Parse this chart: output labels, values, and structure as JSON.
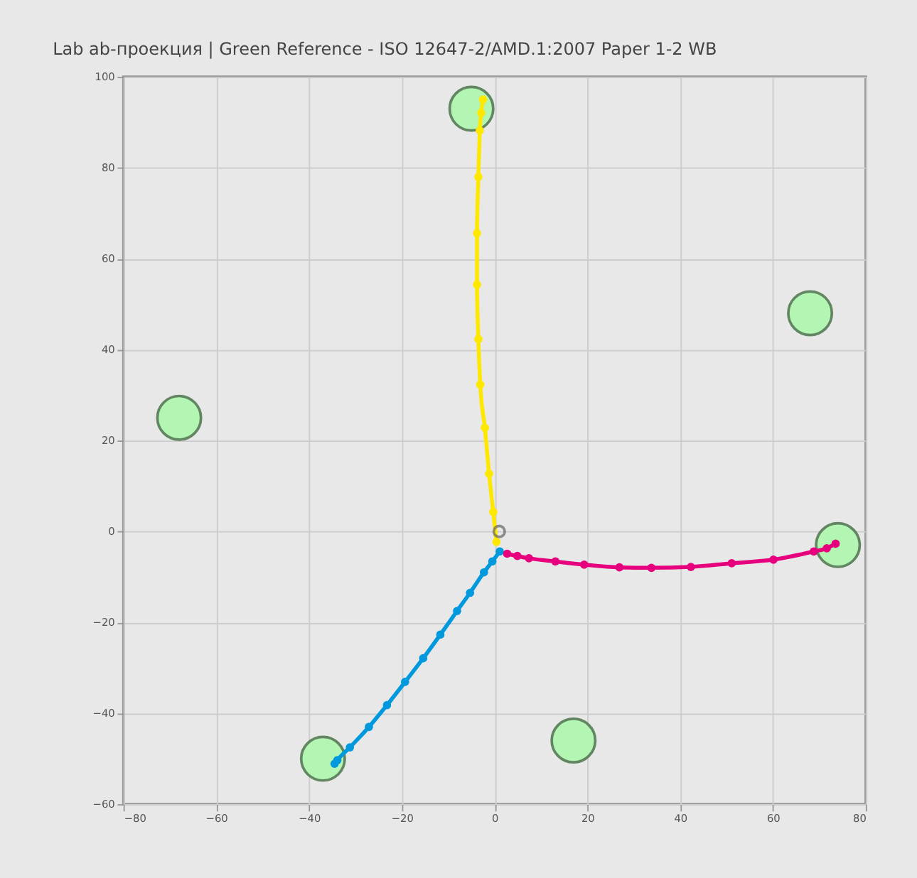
{
  "chart_data": {
    "type": "line",
    "title": "Lab ab-проекция | Green Reference - ISO 12647-2/AMD.1:2007 Paper 1-2 WB",
    "xlim": [
      -80,
      80
    ],
    "xticks": [
      -80,
      -60,
      -40,
      -20,
      0,
      20,
      40,
      60,
      80
    ],
    "ylim": [
      -60,
      100
    ],
    "yticks": [
      -60,
      -40,
      -20,
      0,
      20,
      40,
      60,
      80,
      100
    ],
    "grid": true,
    "legend": false,
    "marker": "circle",
    "line_style": "solid",
    "series": [
      {
        "type": "bubble",
        "color": "#b3f5b3",
        "x": [
          -5,
          68,
          74,
          17,
          -37,
          -68
        ],
        "values": [
          93,
          48,
          -3,
          -46,
          -50,
          25
        ],
        "sizes": [
          1,
          1,
          1,
          1,
          1,
          1
        ]
      },
      {
        "color": "#ffe800",
        "x": [
          0.4,
          -0.3,
          -1.2,
          -2.1,
          -3.1,
          -3.5,
          -3.8,
          -3.8,
          -3.5,
          -3.2,
          -2.9,
          -2.5
        ],
        "values": [
          -2.3,
          4.3,
          12.7,
          22.8,
          32.3,
          42.3,
          54.3,
          65.6,
          78,
          88.2,
          92.1,
          95
        ]
      },
      {
        "color": "#0099dd",
        "x": [
          1.1,
          -0.5,
          -2.3,
          -5.3,
          -8.1,
          -11.7,
          -15.4,
          -19.3,
          -23.2,
          -27.1,
          -31.2,
          -33.9,
          -34.5
        ],
        "values": [
          -4.4,
          -6.6,
          -9.0,
          -13.5,
          -17.5,
          -22.7,
          -27.9,
          -33.1,
          -38.2,
          -43.0,
          -47.5,
          -50.3,
          -51.1
        ]
      },
      {
        "color": "#e6007e",
        "x": [
          2.7,
          4.9,
          7.4,
          13.1,
          19.3,
          26.9,
          33.8,
          42.3,
          51.1,
          60.1,
          68.8,
          71.6,
          73.5
        ],
        "values": [
          -4.9,
          -5.4,
          -5.9,
          -6.6,
          -7.3,
          -7.9,
          -8.0,
          -7.8,
          -7.0,
          -6.2,
          -4.4,
          -3.7,
          -2.7
        ]
      },
      {
        "type": "scatter",
        "color": "#666666",
        "x": [
          1
        ],
        "values": [
          0
        ]
      }
    ]
  }
}
